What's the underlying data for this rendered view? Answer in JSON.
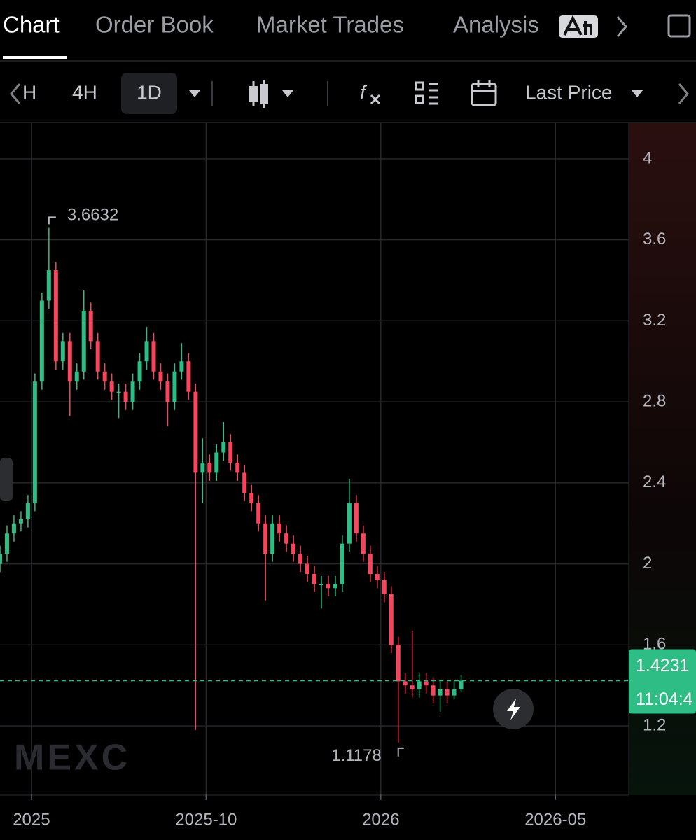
{
  "tabs": [
    "Chart",
    "Order Book",
    "Market Trades",
    "Analysis"
  ],
  "toolbar": {
    "partial_interval": "H",
    "intervals": [
      "4H",
      "1D"
    ],
    "price_mode": "Last Price"
  },
  "watermark": "MEXC",
  "chart_data": {
    "type": "candlestick",
    "colors": {
      "up": "#2ebd85",
      "down": "#f6465d"
    },
    "x": [
      0,
      1,
      2,
      3,
      4,
      5,
      6,
      7,
      8,
      9,
      10,
      11,
      12,
      13,
      14,
      15,
      16,
      17,
      18,
      19,
      20,
      21,
      22,
      23,
      24,
      25,
      26,
      27,
      28,
      29,
      30,
      31,
      32,
      33,
      34,
      35,
      36,
      37,
      38,
      39,
      40,
      41,
      42,
      43,
      44,
      45,
      46,
      47,
      48,
      49,
      50,
      51,
      52,
      53,
      54,
      55,
      56,
      57,
      58,
      59,
      60,
      61,
      62,
      63,
      64,
      65,
      66
    ],
    "open": [
      2.0,
      2.05,
      2.15,
      2.2,
      2.22,
      2.3,
      2.9,
      3.3,
      3.45,
      3.0,
      3.1,
      2.9,
      2.95,
      3.25,
      3.1,
      2.95,
      2.9,
      2.85,
      2.85,
      2.8,
      2.9,
      3.0,
      3.1,
      2.95,
      2.9,
      2.8,
      2.95,
      3.0,
      2.85,
      2.45,
      2.5,
      2.45,
      2.55,
      2.6,
      2.5,
      2.45,
      2.35,
      2.3,
      2.2,
      2.05,
      2.2,
      2.15,
      2.1,
      2.05,
      2.0,
      1.95,
      1.9,
      1.9,
      1.88,
      1.9,
      2.1,
      2.3,
      2.15,
      2.05,
      1.95,
      1.92,
      1.85,
      1.6,
      1.42,
      1.4,
      1.38,
      1.42,
      1.4,
      1.35,
      1.38,
      1.35,
      1.38
    ],
    "high": [
      2.09,
      2.19,
      2.24,
      2.26,
      2.34,
      2.94,
      3.34,
      3.6632,
      3.49,
      3.14,
      3.14,
      2.99,
      3.35,
      3.29,
      3.14,
      2.99,
      2.94,
      2.89,
      2.89,
      2.94,
      3.04,
      3.17,
      3.14,
      2.99,
      2.94,
      2.99,
      3.09,
      3.04,
      2.89,
      2.62,
      2.54,
      2.59,
      2.7,
      2.64,
      2.54,
      2.49,
      2.39,
      2.34,
      2.24,
      2.24,
      2.24,
      2.19,
      2.14,
      2.09,
      2.04,
      1.99,
      1.94,
      1.94,
      1.94,
      2.14,
      2.42,
      2.34,
      2.19,
      2.09,
      1.99,
      1.96,
      1.89,
      1.64,
      1.46,
      1.67,
      1.46,
      1.46,
      1.44,
      1.42,
      1.42,
      1.42,
      1.45
    ],
    "low": [
      1.96,
      2.01,
      2.11,
      2.16,
      2.18,
      2.26,
      2.86,
      3.26,
      2.96,
      2.96,
      2.73,
      2.86,
      2.91,
      3.06,
      2.91,
      2.86,
      2.81,
      2.72,
      2.76,
      2.76,
      2.86,
      2.96,
      2.91,
      2.86,
      2.68,
      2.76,
      2.91,
      2.81,
      1.18,
      2.3,
      2.41,
      2.41,
      2.51,
      2.46,
      2.41,
      2.31,
      2.26,
      2.16,
      1.82,
      2.01,
      2.11,
      2.06,
      2.01,
      1.96,
      1.91,
      1.86,
      1.78,
      1.84,
      1.84,
      1.86,
      2.06,
      2.11,
      2.01,
      1.91,
      1.88,
      1.81,
      1.56,
      1.1178,
      1.36,
      1.34,
      1.34,
      1.36,
      1.31,
      1.27,
      1.31,
      1.33,
      1.37
    ],
    "close": [
      2.05,
      2.15,
      2.2,
      2.22,
      2.3,
      2.9,
      3.3,
      3.45,
      3.0,
      3.1,
      2.9,
      2.95,
      3.25,
      3.1,
      2.95,
      2.9,
      2.85,
      2.85,
      2.8,
      2.9,
      3.0,
      3.1,
      2.95,
      2.9,
      2.8,
      2.95,
      3.0,
      2.85,
      2.45,
      2.5,
      2.45,
      2.55,
      2.6,
      2.5,
      2.45,
      2.35,
      2.3,
      2.2,
      2.05,
      2.2,
      2.15,
      2.1,
      2.05,
      2.0,
      1.95,
      1.9,
      1.9,
      1.88,
      1.9,
      2.1,
      2.3,
      2.15,
      2.05,
      1.95,
      1.92,
      1.85,
      1.6,
      1.42,
      1.4,
      1.38,
      1.42,
      1.4,
      1.35,
      1.38,
      1.35,
      1.38,
      1.4231
    ],
    "high_marker": 7,
    "low_marker": 57,
    "countdown": "11:04:4",
    "xlim": [
      0,
      90
    ],
    "xticks": [
      {
        "value": 4.5,
        "label": "2025"
      },
      {
        "value": 29.5,
        "label": "2025-10"
      },
      {
        "value": 54.5,
        "label": "2026"
      },
      {
        "value": 79.5,
        "label": "2026-05"
      }
    ],
    "ylim": [
      0.8615,
      4.1761
    ],
    "yticks": [
      1.2,
      1.6,
      2,
      2.4,
      2.8,
      3.2,
      3.6,
      4
    ],
    "grid": true
  }
}
